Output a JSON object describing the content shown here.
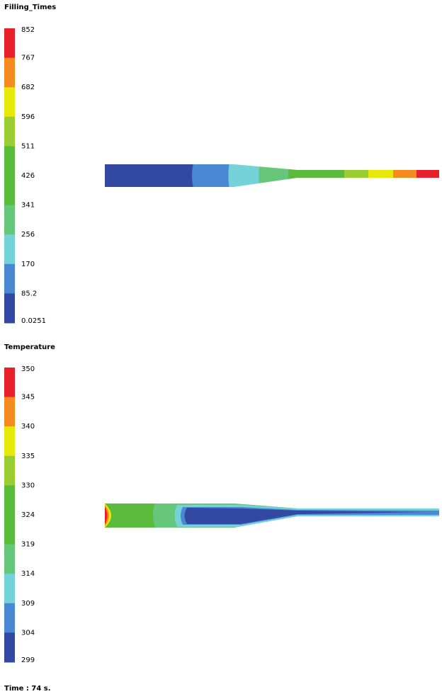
{
  "legends": [
    {
      "title": "Filling_Times",
      "labels": [
        "852",
        "767",
        "682",
        "596",
        "511",
        "426",
        "341",
        "256",
        "170",
        "85.2",
        "0.0251"
      ],
      "colors": [
        "#e8202a",
        "#f58a1f",
        "#e6e80c",
        "#9acd32",
        "#5abb3c",
        "#5abb3c",
        "#66c67a",
        "#74d2d8",
        "#4a88d4",
        "#3348a0"
      ]
    },
    {
      "title": "Temperature",
      "labels": [
        "350",
        "345",
        "340",
        "335",
        "330",
        "324",
        "319",
        "314",
        "309",
        "304",
        "299"
      ],
      "colors": [
        "#e8202a",
        "#f58a1f",
        "#e6e80c",
        "#9acd32",
        "#5abb3c",
        "#5abb3c",
        "#66c67a",
        "#74d2d8",
        "#4a88d4",
        "#3348a0"
      ]
    }
  ],
  "footer": "Time : 74 s."
}
